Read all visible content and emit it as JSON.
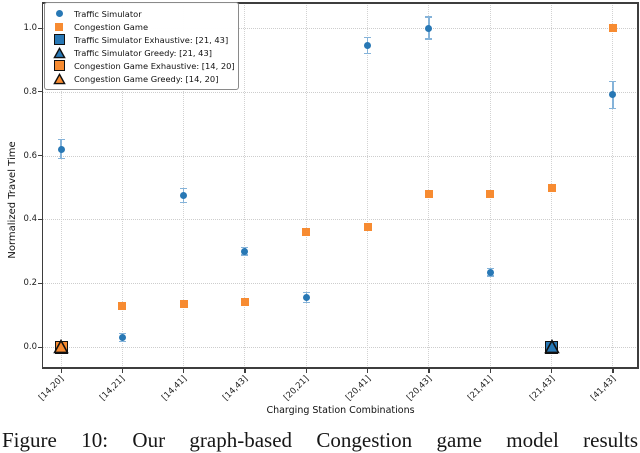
{
  "caption": "Figure 10: Our graph-based Congestion game model results",
  "colors": {
    "traffic_simulator_blue": "#2878b5",
    "congestion_game_orange": "#f78b31",
    "error_bar_blue": "#85b3d9",
    "marker_edge_black": "#111111",
    "grid_gray": "#cdcdcd",
    "spine_gray": "#3d3d3d"
  },
  "legend": {
    "entries": [
      {
        "marker": "circle-small",
        "color": "#2878b5",
        "label": "Traffic Simulator"
      },
      {
        "marker": "square-small",
        "color": "#f78b31",
        "label": "Congestion Game"
      },
      {
        "marker": "square-large",
        "color": "#2878b5",
        "label": "Traffic Simulator Exhaustive: [21, 43]"
      },
      {
        "marker": "triangle-large",
        "color": "#2878b5",
        "label": "Traffic Simulator Greedy: [21, 43]"
      },
      {
        "marker": "square-large",
        "color": "#f78b31",
        "label": "Congestion Game Exhaustive: [14, 20]"
      },
      {
        "marker": "triangle-large",
        "color": "#f78b31",
        "label": "Congestion Game Greedy: [14, 20]"
      }
    ]
  },
  "chart_data": {
    "type": "scatter",
    "title": "",
    "xlabel": "Charging Station Combinations",
    "ylabel": "Normalized Travel Time",
    "ylim": [
      -0.07,
      1.08
    ],
    "yticks": [
      0.0,
      0.2,
      0.4,
      0.6,
      0.8,
      1.0
    ],
    "ytick_labels": [
      "0.0",
      "0.2",
      "0.4",
      "0.6",
      "0.8",
      "1.0"
    ],
    "grid": true,
    "legend_position": "upper left",
    "categories": [
      "[14,20]",
      "[14,21]",
      "[14,41]",
      "[14,43]",
      "[20,21]",
      "[20,41]",
      "[20,43]",
      "[21,41]",
      "[21,43]",
      "[41,43]"
    ],
    "series": [
      {
        "name": "Traffic Simulator",
        "marker": "circle",
        "color": "#2878b5",
        "values": [
          0.62,
          0.03,
          0.475,
          0.3,
          0.155,
          0.945,
          1.0,
          0.235,
          null,
          0.79
        ],
        "errors": [
          0.03,
          0.012,
          0.022,
          0.012,
          0.015,
          0.025,
          0.035,
          0.012,
          null,
          0.042
        ]
      },
      {
        "name": "Congestion Game",
        "marker": "square",
        "color": "#f78b31",
        "values": [
          null,
          0.13,
          0.135,
          0.14,
          0.36,
          0.375,
          0.48,
          0.48,
          0.5,
          1.0
        ],
        "errors": null
      }
    ],
    "special_markers": [
      {
        "category": "[14,20]",
        "value": 0.0,
        "color": "#f78b31",
        "shapes": [
          "square",
          "triangle"
        ],
        "meaning": "Congestion Game Exhaustive + Greedy optimum"
      },
      {
        "category": "[21,43]",
        "value": 0.0,
        "color": "#2878b5",
        "shapes": [
          "square",
          "triangle"
        ],
        "meaning": "Traffic Simulator Exhaustive + Greedy optimum"
      }
    ]
  }
}
